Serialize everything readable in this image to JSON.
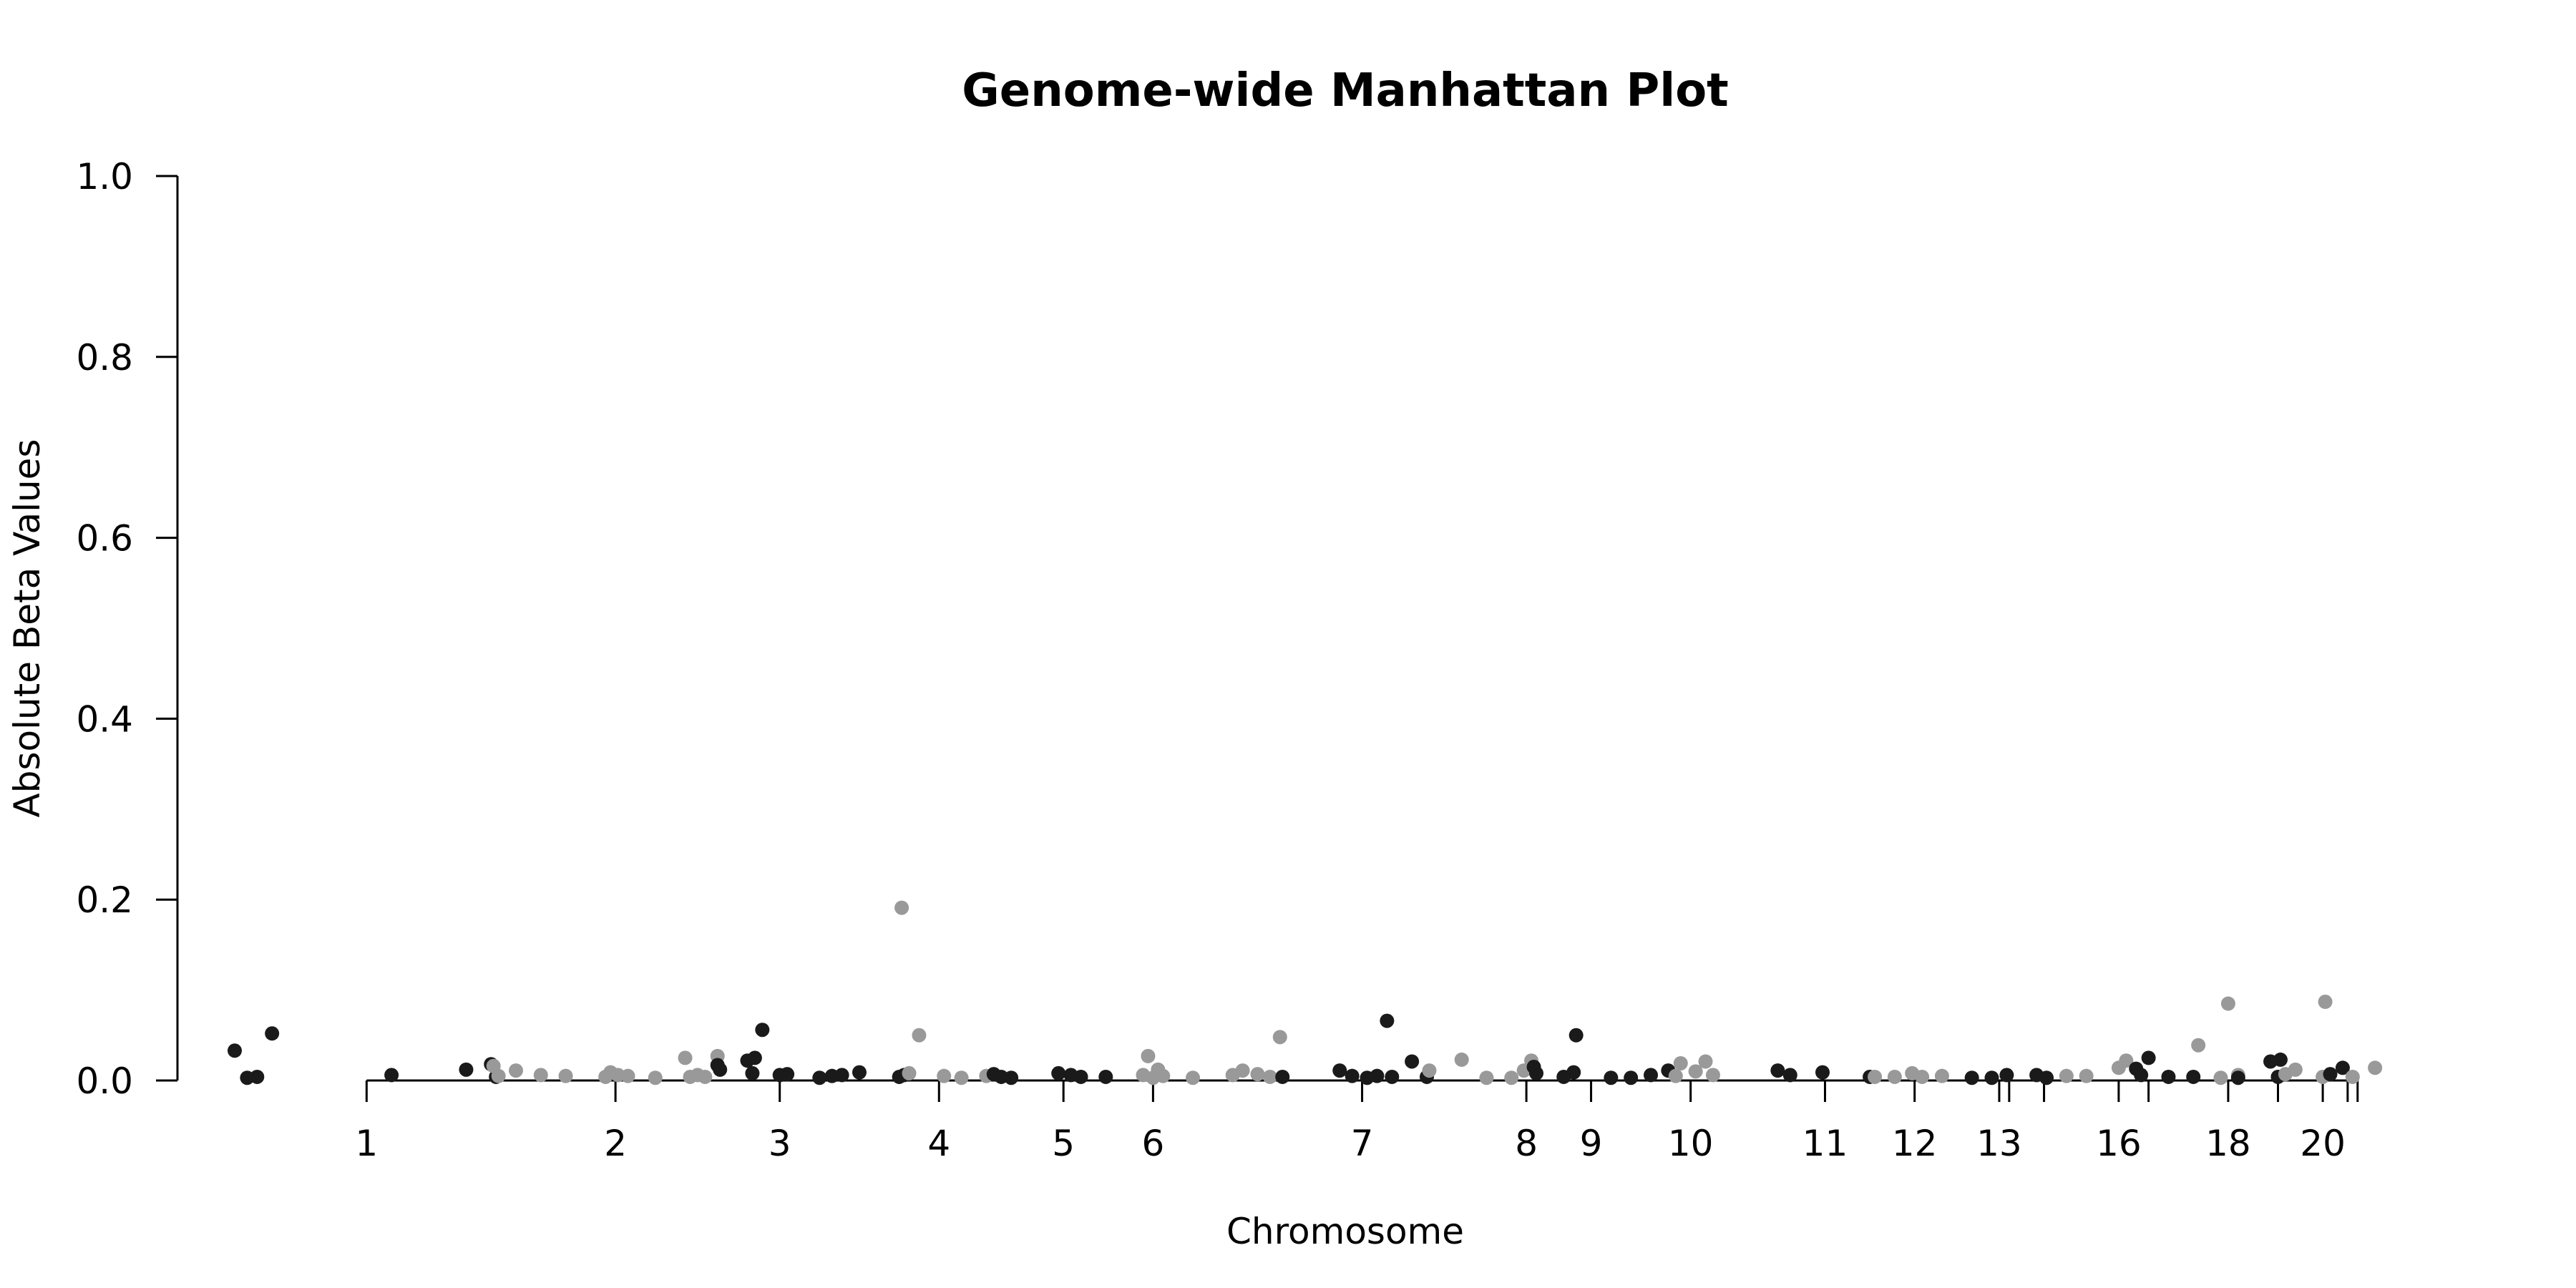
{
  "chart_data": {
    "type": "scatter",
    "title": "Genome-wide Manhattan Plot",
    "xlabel": "Chromosome",
    "ylabel": "Absolute Beta Values",
    "ylim": [
      0,
      1
    ],
    "yticks": [
      "0.0",
      "0.2",
      "0.4",
      "0.6",
      "0.8",
      "1.0"
    ],
    "grid": false,
    "legend": "none",
    "colors": {
      "odd": "#1a1a1a",
      "even": "#999999"
    },
    "chromosome_ticks": [
      {
        "label": "1",
        "pos": 1300
      },
      {
        "label": "2",
        "pos": 6300
      },
      {
        "label": "3",
        "pos": 9600
      },
      {
        "label": "4",
        "pos": 12800
      },
      {
        "label": "5",
        "pos": 15300
      },
      {
        "label": "6",
        "pos": 17100
      },
      {
        "label": "7",
        "pos": 21300
      },
      {
        "label": "8",
        "pos": 24600
      },
      {
        "label": "9",
        "pos": 25900
      },
      {
        "label": "10",
        "pos": 27900
      },
      {
        "label": "11",
        "pos": 30600
      },
      {
        "label": "12",
        "pos": 32400
      },
      {
        "label": "13",
        "pos": 34100
      },
      {
        "label": "",
        "pos": 34300
      },
      {
        "label": "",
        "pos": 35000
      },
      {
        "label": "16",
        "pos": 36500
      },
      {
        "label": "",
        "pos": 37100
      },
      {
        "label": "18",
        "pos": 38700
      },
      {
        "label": "",
        "pos": 39700
      },
      {
        "label": "20",
        "pos": 40600
      },
      {
        "label": "",
        "pos": 41100
      },
      {
        "label": "",
        "pos": 41300
      }
    ],
    "x_range": [
      -2500,
      43100
    ],
    "points": [
      {
        "x": -1350,
        "y": 0.033,
        "c": "odd"
      },
      {
        "x": -1100,
        "y": 0.003,
        "c": "odd"
      },
      {
        "x": -900,
        "y": 0.004,
        "c": "odd"
      },
      {
        "x": -600,
        "y": 0.052,
        "c": "odd"
      },
      {
        "x": 1800,
        "y": 0.006,
        "c": "odd"
      },
      {
        "x": 3300,
        "y": 0.012,
        "c": "odd"
      },
      {
        "x": 3800,
        "y": 0.018,
        "c": "odd"
      },
      {
        "x": 3900,
        "y": 0.004,
        "c": "odd"
      },
      {
        "x": 3850,
        "y": 0.016,
        "c": "even"
      },
      {
        "x": 3950,
        "y": 0.005,
        "c": "even"
      },
      {
        "x": 4300,
        "y": 0.011,
        "c": "even"
      },
      {
        "x": 4800,
        "y": 0.006,
        "c": "even"
      },
      {
        "x": 5300,
        "y": 0.005,
        "c": "even"
      },
      {
        "x": 6100,
        "y": 0.004,
        "c": "even"
      },
      {
        "x": 6200,
        "y": 0.009,
        "c": "even"
      },
      {
        "x": 6350,
        "y": 0.006,
        "c": "even"
      },
      {
        "x": 6550,
        "y": 0.005,
        "c": "even"
      },
      {
        "x": 7100,
        "y": 0.003,
        "c": "even"
      },
      {
        "x": 7700,
        "y": 0.025,
        "c": "even"
      },
      {
        "x": 7800,
        "y": 0.004,
        "c": "even"
      },
      {
        "x": 7950,
        "y": 0.006,
        "c": "even"
      },
      {
        "x": 8100,
        "y": 0.004,
        "c": "even"
      },
      {
        "x": 8350,
        "y": 0.027,
        "c": "even"
      },
      {
        "x": 8400,
        "y": 0.012,
        "c": "odd"
      },
      {
        "x": 8350,
        "y": 0.017,
        "c": "odd"
      },
      {
        "x": 8950,
        "y": 0.022,
        "c": "odd"
      },
      {
        "x": 9100,
        "y": 0.025,
        "c": "odd"
      },
      {
        "x": 9050,
        "y": 0.008,
        "c": "odd"
      },
      {
        "x": 9250,
        "y": 0.056,
        "c": "odd"
      },
      {
        "x": 9600,
        "y": 0.006,
        "c": "odd"
      },
      {
        "x": 9750,
        "y": 0.007,
        "c": "odd"
      },
      {
        "x": 10400,
        "y": 0.003,
        "c": "odd"
      },
      {
        "x": 10650,
        "y": 0.005,
        "c": "odd"
      },
      {
        "x": 10850,
        "y": 0.006,
        "c": "odd"
      },
      {
        "x": 11200,
        "y": 0.009,
        "c": "odd"
      },
      {
        "x": 12000,
        "y": 0.004,
        "c": "odd"
      },
      {
        "x": 12100,
        "y": 0.006,
        "c": "odd"
      },
      {
        "x": 12050,
        "y": 0.191,
        "c": "even"
      },
      {
        "x": 12200,
        "y": 0.008,
        "c": "even"
      },
      {
        "x": 12400,
        "y": 0.05,
        "c": "even"
      },
      {
        "x": 12900,
        "y": 0.005,
        "c": "even"
      },
      {
        "x": 13250,
        "y": 0.003,
        "c": "even"
      },
      {
        "x": 13750,
        "y": 0.005,
        "c": "even"
      },
      {
        "x": 13900,
        "y": 0.007,
        "c": "odd"
      },
      {
        "x": 14050,
        "y": 0.004,
        "c": "odd"
      },
      {
        "x": 14250,
        "y": 0.003,
        "c": "odd"
      },
      {
        "x": 15200,
        "y": 0.008,
        "c": "odd"
      },
      {
        "x": 15450,
        "y": 0.006,
        "c": "odd"
      },
      {
        "x": 15650,
        "y": 0.004,
        "c": "odd"
      },
      {
        "x": 16150,
        "y": 0.004,
        "c": "odd"
      },
      {
        "x": 16900,
        "y": 0.006,
        "c": "even"
      },
      {
        "x": 17000,
        "y": 0.027,
        "c": "even"
      },
      {
        "x": 17100,
        "y": 0.003,
        "c": "even"
      },
      {
        "x": 17200,
        "y": 0.012,
        "c": "even"
      },
      {
        "x": 17300,
        "y": 0.005,
        "c": "even"
      },
      {
        "x": 17900,
        "y": 0.003,
        "c": "even"
      },
      {
        "x": 18700,
        "y": 0.006,
        "c": "even"
      },
      {
        "x": 18900,
        "y": 0.011,
        "c": "even"
      },
      {
        "x": 19200,
        "y": 0.007,
        "c": "even"
      },
      {
        "x": 19450,
        "y": 0.004,
        "c": "even"
      },
      {
        "x": 19650,
        "y": 0.048,
        "c": "even"
      },
      {
        "x": 19700,
        "y": 0.004,
        "c": "odd"
      },
      {
        "x": 20850,
        "y": 0.011,
        "c": "odd"
      },
      {
        "x": 21100,
        "y": 0.005,
        "c": "odd"
      },
      {
        "x": 21400,
        "y": 0.003,
        "c": "odd"
      },
      {
        "x": 21600,
        "y": 0.005,
        "c": "odd"
      },
      {
        "x": 21800,
        "y": 0.066,
        "c": "odd"
      },
      {
        "x": 21900,
        "y": 0.004,
        "c": "odd"
      },
      {
        "x": 22300,
        "y": 0.021,
        "c": "odd"
      },
      {
        "x": 22600,
        "y": 0.004,
        "c": "odd"
      },
      {
        "x": 22650,
        "y": 0.011,
        "c": "even"
      },
      {
        "x": 23300,
        "y": 0.023,
        "c": "even"
      },
      {
        "x": 23800,
        "y": 0.003,
        "c": "even"
      },
      {
        "x": 24300,
        "y": 0.003,
        "c": "even"
      },
      {
        "x": 24550,
        "y": 0.011,
        "c": "even"
      },
      {
        "x": 24700,
        "y": 0.022,
        "c": "even"
      },
      {
        "x": 24750,
        "y": 0.015,
        "c": "odd"
      },
      {
        "x": 24800,
        "y": 0.008,
        "c": "odd"
      },
      {
        "x": 25350,
        "y": 0.004,
        "c": "odd"
      },
      {
        "x": 25550,
        "y": 0.009,
        "c": "odd"
      },
      {
        "x": 25600,
        "y": 0.05,
        "c": "odd"
      },
      {
        "x": 26300,
        "y": 0.003,
        "c": "odd"
      },
      {
        "x": 26700,
        "y": 0.003,
        "c": "odd"
      },
      {
        "x": 27100,
        "y": 0.006,
        "c": "odd"
      },
      {
        "x": 27450,
        "y": 0.011,
        "c": "odd"
      },
      {
        "x": 27600,
        "y": 0.005,
        "c": "even"
      },
      {
        "x": 27700,
        "y": 0.019,
        "c": "even"
      },
      {
        "x": 28000,
        "y": 0.01,
        "c": "even"
      },
      {
        "x": 28200,
        "y": 0.021,
        "c": "even"
      },
      {
        "x": 28350,
        "y": 0.006,
        "c": "even"
      },
      {
        "x": 29650,
        "y": 0.011,
        "c": "odd"
      },
      {
        "x": 29900,
        "y": 0.006,
        "c": "odd"
      },
      {
        "x": 30550,
        "y": 0.009,
        "c": "odd"
      },
      {
        "x": 31500,
        "y": 0.004,
        "c": "odd"
      },
      {
        "x": 31600,
        "y": 0.004,
        "c": "even"
      },
      {
        "x": 32000,
        "y": 0.004,
        "c": "even"
      },
      {
        "x": 32350,
        "y": 0.008,
        "c": "even"
      },
      {
        "x": 32550,
        "y": 0.004,
        "c": "even"
      },
      {
        "x": 32950,
        "y": 0.005,
        "c": "even"
      },
      {
        "x": 33550,
        "y": 0.003,
        "c": "odd"
      },
      {
        "x": 33950,
        "y": 0.003,
        "c": "odd"
      },
      {
        "x": 34250,
        "y": 0.006,
        "c": "odd"
      },
      {
        "x": 34850,
        "y": 0.006,
        "c": "odd"
      },
      {
        "x": 35050,
        "y": 0.003,
        "c": "odd"
      },
      {
        "x": 35450,
        "y": 0.005,
        "c": "even"
      },
      {
        "x": 35850,
        "y": 0.005,
        "c": "even"
      },
      {
        "x": 36500,
        "y": 0.014,
        "c": "even"
      },
      {
        "x": 36650,
        "y": 0.022,
        "c": "even"
      },
      {
        "x": 36850,
        "y": 0.013,
        "c": "odd"
      },
      {
        "x": 36950,
        "y": 0.006,
        "c": "odd"
      },
      {
        "x": 37100,
        "y": 0.025,
        "c": "odd"
      },
      {
        "x": 37500,
        "y": 0.004,
        "c": "odd"
      },
      {
        "x": 38100,
        "y": 0.039,
        "c": "even"
      },
      {
        "x": 38000,
        "y": 0.004,
        "c": "odd"
      },
      {
        "x": 38550,
        "y": 0.003,
        "c": "even"
      },
      {
        "x": 38700,
        "y": 0.085,
        "c": "even"
      },
      {
        "x": 38900,
        "y": 0.006,
        "c": "even"
      },
      {
        "x": 38900,
        "y": 0.003,
        "c": "odd"
      },
      {
        "x": 39550,
        "y": 0.021,
        "c": "odd"
      },
      {
        "x": 39750,
        "y": 0.023,
        "c": "odd"
      },
      {
        "x": 39700,
        "y": 0.004,
        "c": "odd"
      },
      {
        "x": 39850,
        "y": 0.007,
        "c": "even"
      },
      {
        "x": 40050,
        "y": 0.012,
        "c": "even"
      },
      {
        "x": 40600,
        "y": 0.004,
        "c": "even"
      },
      {
        "x": 40650,
        "y": 0.087,
        "c": "even"
      },
      {
        "x": 40750,
        "y": 0.007,
        "c": "odd"
      },
      {
        "x": 41000,
        "y": 0.014,
        "c": "odd"
      },
      {
        "x": 41200,
        "y": 0.004,
        "c": "even"
      },
      {
        "x": 41650,
        "y": 0.014,
        "c": "even"
      }
    ]
  }
}
